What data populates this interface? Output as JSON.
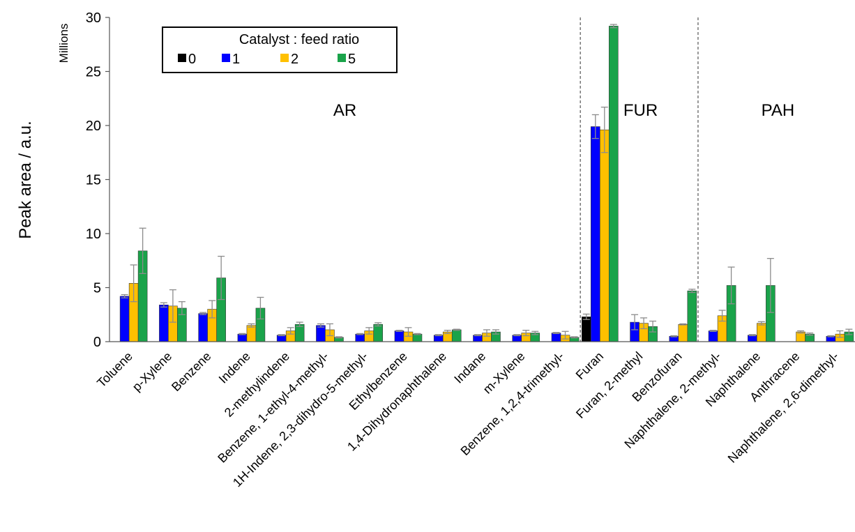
{
  "chart_data": {
    "type": "bar",
    "title": "",
    "ylabel": "Peak area / a.u.",
    "y_units_label": "Millions",
    "ylim": [
      0,
      30
    ],
    "yticks": [
      0,
      5,
      10,
      15,
      20,
      25,
      30
    ],
    "grid": false,
    "legend": {
      "title": "Catalyst : feed ratio",
      "placement": "top-left",
      "entries": [
        "0",
        "1",
        "2",
        "5"
      ]
    },
    "categories": [
      "Toluene",
      "p-Xylene",
      "Benzene",
      "Indene",
      "2-methylindene",
      "Benzene, 1-ethyl-4-methyl-",
      "1H-Indene, 2,3-dihydro-5-methyl-",
      "Ethylbenzene",
      "1,4-Dihydronaphthalene",
      "Indane",
      "m-Xylene",
      "Benzene, 1,2,4-trimethyl-",
      "Furan",
      "Furan, 2-methyl",
      "Benzofuran",
      "Naphthalene, 2-methyl-",
      "Naphthalene",
      "Anthracene",
      "Naphthalene, 2,6-dimethyl-"
    ],
    "regions": [
      {
        "label": "AR",
        "from": 0,
        "to": 11
      },
      {
        "label": "FUR",
        "from": 12,
        "to": 14
      },
      {
        "label": "PAH",
        "from": 15,
        "to": 18
      }
    ],
    "series": [
      {
        "name": "0",
        "color": "#000000",
        "values": [
          0,
          0,
          0,
          0,
          0,
          0,
          0,
          0,
          0,
          0,
          0,
          0,
          2.3,
          0,
          0,
          0,
          0,
          0,
          0
        ],
        "errors": [
          0,
          0,
          0,
          0,
          0,
          0,
          0,
          0,
          0,
          0,
          0,
          0,
          0.25,
          0,
          0,
          0,
          0,
          0,
          0
        ]
      },
      {
        "name": "1",
        "color": "#0000ff",
        "values": [
          4.2,
          3.4,
          2.6,
          0.7,
          0.6,
          1.5,
          0.7,
          1.0,
          0.6,
          0.6,
          0.6,
          0.8,
          19.9,
          1.8,
          0.5,
          1.0,
          0.6,
          0,
          0.5
        ],
        "errors": [
          0.15,
          0.2,
          0.1,
          0.05,
          0.05,
          0.15,
          0.05,
          0.05,
          0.05,
          0.05,
          0.05,
          0.05,
          1.1,
          0.7,
          0.05,
          0.05,
          0.05,
          0,
          0.05
        ]
      },
      {
        "name": "2",
        "color": "#ffc000",
        "values": [
          5.4,
          3.3,
          3.0,
          1.5,
          1.0,
          1.1,
          1.0,
          0.9,
          0.9,
          0.8,
          0.8,
          0.6,
          19.6,
          1.7,
          1.6,
          2.4,
          1.7,
          0.9,
          0.7
        ],
        "errors": [
          1.7,
          1.5,
          0.8,
          0.15,
          0.3,
          0.55,
          0.3,
          0.4,
          0.15,
          0.3,
          0.25,
          0.35,
          2.1,
          0.5,
          0.05,
          0.5,
          0.15,
          0.1,
          0.3
        ]
      },
      {
        "name": "5",
        "color": "#1aa34a",
        "values": [
          8.4,
          3.1,
          5.9,
          3.1,
          1.6,
          0.4,
          1.6,
          0.7,
          1.1,
          0.9,
          0.8,
          0.4,
          29.2,
          1.4,
          4.7,
          5.2,
          5.2,
          0.7,
          0.9
        ],
        "errors": [
          2.1,
          0.6,
          2.0,
          1.0,
          0.2,
          0.05,
          0.15,
          0.05,
          0.05,
          0.2,
          0.15,
          0.05,
          0.15,
          0.5,
          0.15,
          1.7,
          2.5,
          0.1,
          0.25
        ]
      }
    ]
  }
}
